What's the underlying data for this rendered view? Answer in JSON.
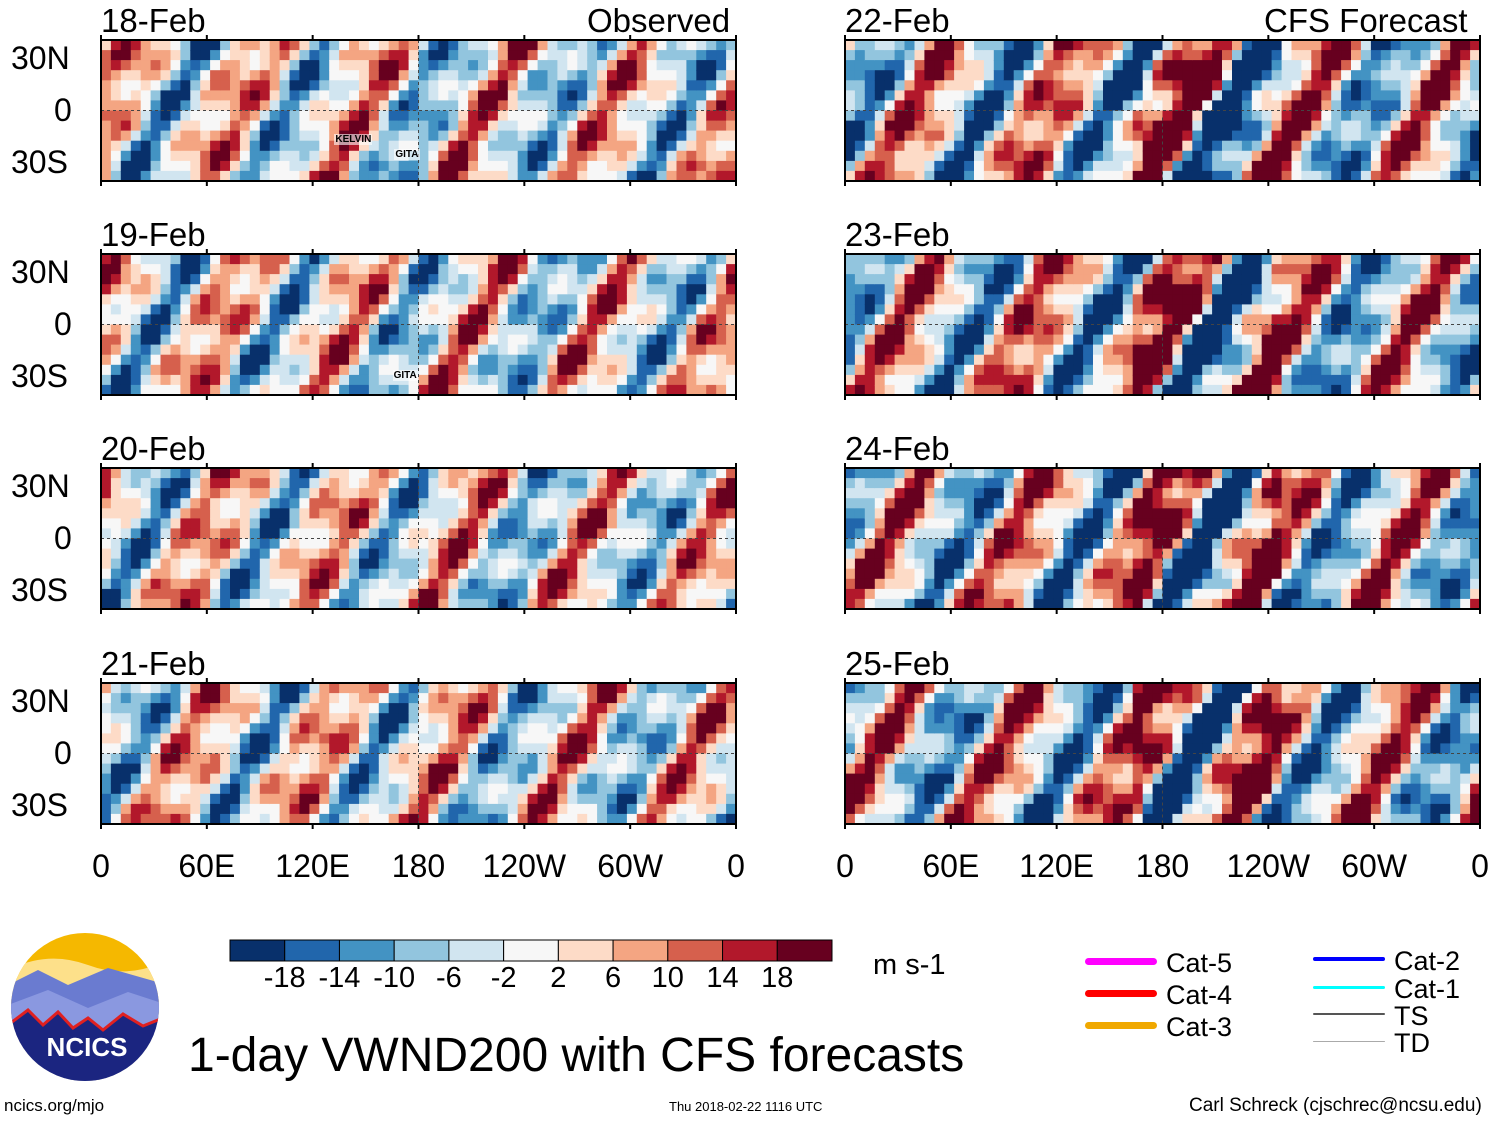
{
  "header": {
    "left_title": "Observed",
    "right_title": "CFS Forecast"
  },
  "chart_data": {
    "type": "heatmap",
    "title": "1-day VWND200 with CFS forecasts",
    "units": "m s-1",
    "panels": [
      {
        "date": "18-Feb",
        "group": "Observed",
        "storms": [
          {
            "name": "KELVIN",
            "lon": 138,
            "lat": -17
          },
          {
            "name": "GITA",
            "lon": 172,
            "lat": -25
          }
        ]
      },
      {
        "date": "19-Feb",
        "group": "Observed",
        "storms": [
          {
            "name": "GITA",
            "lon": 171,
            "lat": -29
          }
        ]
      },
      {
        "date": "20-Feb",
        "group": "Observed",
        "storms": []
      },
      {
        "date": "21-Feb",
        "group": "Observed",
        "storms": []
      },
      {
        "date": "22-Feb",
        "group": "CFS Forecast",
        "storms": []
      },
      {
        "date": "23-Feb",
        "group": "CFS Forecast",
        "storms": []
      },
      {
        "date": "24-Feb",
        "group": "CFS Forecast",
        "storms": []
      },
      {
        "date": "25-Feb",
        "group": "CFS Forecast",
        "storms": []
      }
    ],
    "x_ticks": [
      "0",
      "60E",
      "120E",
      "180",
      "120W",
      "60W",
      "0"
    ],
    "y_ticks": [
      "30N",
      "0",
      "30S"
    ],
    "xlim": [
      0,
      360
    ],
    "ylim": [
      -40,
      40
    ],
    "colorbar": {
      "levels": [
        "-18",
        "-14",
        "-10",
        "-6",
        "-2",
        "2",
        "6",
        "10",
        "14",
        "18"
      ],
      "colors": [
        "#08306b",
        "#2166ac",
        "#4393c3",
        "#92c5de",
        "#d1e5f0",
        "#f7f7f7",
        "#fddbc7",
        "#f4a582",
        "#d6604d",
        "#b2182b",
        "#67001f"
      ]
    },
    "legend": [
      {
        "label": "Cat-5",
        "color": "#ff00ff"
      },
      {
        "label": "Cat-4",
        "color": "#ff0000"
      },
      {
        "label": "Cat-3",
        "color": "#f0a800"
      },
      {
        "label": "Cat-2",
        "color": "#0000ff"
      },
      {
        "label": "Cat-1",
        "color": "#00ffff"
      },
      {
        "label": "TS",
        "color": "#555555"
      },
      {
        "label": "TD",
        "color": "#aaaaaa"
      }
    ]
  },
  "footer": {
    "logo_text": "NCICS",
    "url": "ncics.org/mjo",
    "timestamp": "Thu 2018-02-22 1116 UTC",
    "credit": "Carl Schreck (cjschrec@ncsu.edu)"
  }
}
